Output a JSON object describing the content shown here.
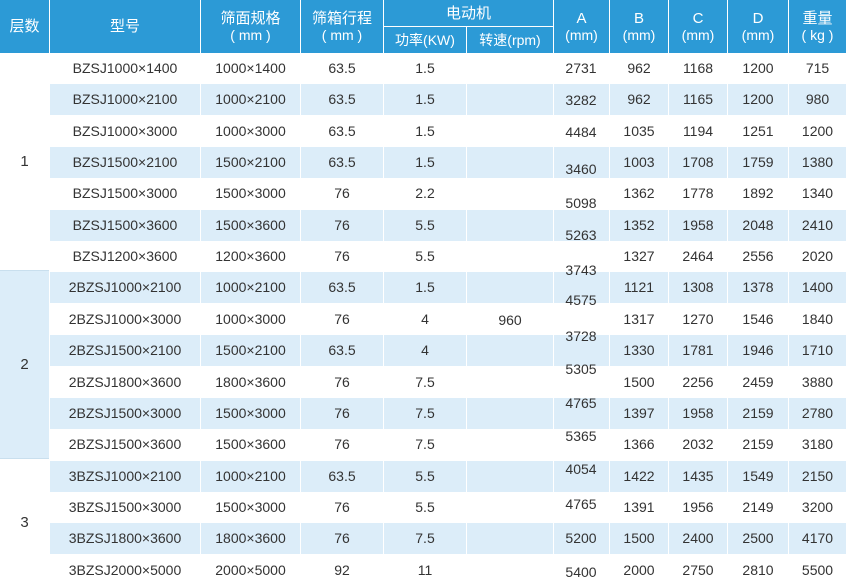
{
  "header": {
    "layer": "层数",
    "model": "型号",
    "screen_size": "筛面规格",
    "screen_size_unit": "( mm )",
    "stroke": "筛箱行程",
    "stroke_unit": "( mm )",
    "motor": "电动机",
    "power": "功率(KW)",
    "speed": "转速(rpm)",
    "a": "A",
    "a_unit": "(mm)",
    "b": "B",
    "b_unit": "(mm)",
    "c": "C",
    "c_unit": "(mm)",
    "d": "D",
    "d_unit": "(mm)",
    "weight": "重量",
    "weight_unit": "( kg )"
  },
  "layers": [
    "1",
    "2",
    "3"
  ],
  "speed_value": "960",
  "colors": {
    "header": "#2c9ad6",
    "band": "#dcedf9",
    "text": "#333333"
  },
  "rows": [
    {
      "model": "BZSJ1000×1400",
      "size": "1000×1400",
      "stroke": "63.5",
      "power": "1.5",
      "b": "962",
      "c": "1168",
      "d": "1200",
      "w": "715"
    },
    {
      "model": "BZSJ1000×2100",
      "size": "1000×2100",
      "stroke": "63.5",
      "power": "1.5",
      "b": "962",
      "c": "1165",
      "d": "1200",
      "w": "980"
    },
    {
      "model": "BZSJ1000×3000",
      "size": "1000×3000",
      "stroke": "63.5",
      "power": "1.5",
      "b": "1035",
      "c": "1194",
      "d": "1251",
      "w": "1200"
    },
    {
      "model": "BZSJ1500×2100",
      "size": "1500×2100",
      "stroke": "63.5",
      "power": "1.5",
      "b": "1003",
      "c": "1708",
      "d": "1759",
      "w": "1380"
    },
    {
      "model": "BZSJ1500×3000",
      "size": "1500×3000",
      "stroke": "76",
      "power": "2.2",
      "b": "1362",
      "c": "1778",
      "d": "1892",
      "w": "1340"
    },
    {
      "model": "BZSJ1500×3600",
      "size": "1500×3600",
      "stroke": "76",
      "power": "5.5",
      "b": "1352",
      "c": "1958",
      "d": "2048",
      "w": "2410"
    },
    {
      "model": "BZSJ1200×3600",
      "size": "1200×3600",
      "stroke": "76",
      "power": "5.5",
      "b": "1327",
      "c": "2464",
      "d": "2556",
      "w": "2020"
    },
    {
      "model": "2BZSJ1000×2100",
      "size": "1000×2100",
      "stroke": "63.5",
      "power": "1.5",
      "b": "1121",
      "c": "1308",
      "d": "1378",
      "w": "1400"
    },
    {
      "model": "2BZSJ1000×3000",
      "size": "1000×3000",
      "stroke": "76",
      "power": "4",
      "b": "1317",
      "c": "1270",
      "d": "1546",
      "w": "1840"
    },
    {
      "model": "2BZSJ1500×2100",
      "size": "1500×2100",
      "stroke": "63.5",
      "power": "4",
      "b": "1330",
      "c": "1781",
      "d": "1946",
      "w": "1710"
    },
    {
      "model": "2BZSJ1800×3600",
      "size": "1800×3600",
      "stroke": "76",
      "power": "7.5",
      "b": "1500",
      "c": "2256",
      "d": "2459",
      "w": "3880"
    },
    {
      "model": "2BZSJ1500×3000",
      "size": "1500×3000",
      "stroke": "76",
      "power": "7.5",
      "b": "1397",
      "c": "1958",
      "d": "2159",
      "w": "2780"
    },
    {
      "model": "2BZSJ1500×3600",
      "size": "1500×3600",
      "stroke": "76",
      "power": "7.5",
      "b": "1366",
      "c": "2032",
      "d": "2159",
      "w": "3180"
    },
    {
      "model": "3BZSJ1000×2100",
      "size": "1000×2100",
      "stroke": "63.5",
      "power": "5.5",
      "b": "1422",
      "c": "1435",
      "d": "1549",
      "w": "2150"
    },
    {
      "model": "3BZSJ1500×3000",
      "size": "1500×3000",
      "stroke": "76",
      "power": "5.5",
      "b": "1391",
      "c": "1956",
      "d": "2149",
      "w": "3200"
    },
    {
      "model": "3BZSJ1800×3600",
      "size": "1800×3600",
      "stroke": "76",
      "power": "7.5",
      "b": "1500",
      "c": "2400",
      "d": "2500",
      "w": "4170"
    },
    {
      "model": "3BZSJ2000×5000",
      "size": "2000×5000",
      "stroke": "92",
      "power": "11",
      "b": "2000",
      "c": "2750",
      "d": "2810",
      "w": "5500"
    }
  ],
  "a_values": [
    "2731",
    "3282",
    "4484",
    "3460",
    "5098",
    "5263",
    "3743",
    "4575",
    "3728",
    "5305",
    "4765",
    "5365",
    "4054",
    "4765",
    "5200",
    "5400"
  ]
}
